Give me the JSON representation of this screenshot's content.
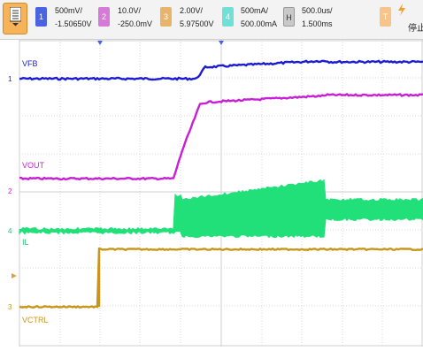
{
  "toolbar": {
    "menu_icon": "menu-list-icon",
    "channels": [
      {
        "id": "1",
        "scale": "500mV/",
        "offset": "-1.50650V",
        "color": "#4a63e0"
      },
      {
        "id": "2",
        "scale": "10.0V/",
        "offset": "-250.0mV",
        "color": "#d67ad8"
      },
      {
        "id": "3",
        "scale": "2.00V/",
        "offset": "5.97500V",
        "color": "#e8b46a"
      },
      {
        "id": "4",
        "scale": "500mA/",
        "offset": "500.00mA",
        "color": "#6fe0d8"
      }
    ],
    "horizontal": {
      "id": "H",
      "scale": "500.0us/",
      "position": "1.500ms"
    },
    "trigger": {
      "id": "T",
      "icon": "lightning-icon",
      "status": "停止"
    }
  },
  "traces": {
    "vfb": {
      "label": "VFB",
      "marker": "1",
      "color": "#1b1bd6"
    },
    "vout": {
      "label": "VOUT",
      "marker": "2",
      "color": "#c81ed6"
    },
    "il": {
      "label": "IL",
      "marker": "4",
      "color": "#21e07a"
    },
    "vctrl": {
      "label": "VCTRL",
      "marker": "3",
      "color": "#c8961a"
    }
  },
  "colors": {
    "grid": "#cfcfcf",
    "plot_bg": "#ffffff",
    "accent": "#f7b35a"
  }
}
